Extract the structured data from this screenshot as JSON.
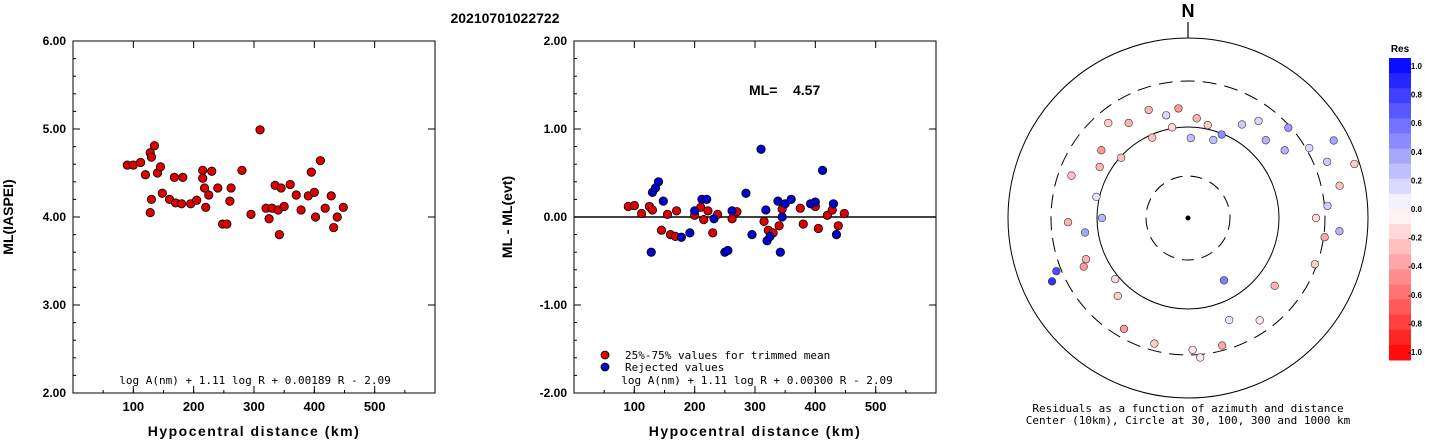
{
  "header": {
    "event_id": "20210701022722"
  },
  "chart_data": [
    {
      "type": "scatter",
      "panel": "left",
      "ylabel": "ML(IASPEI)",
      "xlabel": "Hypocentral distance (km)",
      "xlim": [
        0,
        600
      ],
      "ylim": [
        2.0,
        6.0
      ],
      "xticks": [
        "100",
        "200",
        "300",
        "400",
        "500"
      ],
      "yticks": [
        "2.00",
        "3.00",
        "4.00",
        "5.00",
        "6.00"
      ],
      "formula": "log A(nm) + 1.11 log R + 0.00189 R - 2.09",
      "color": "#dd0000",
      "points": [
        [
          90,
          4.59
        ],
        [
          100,
          4.59
        ],
        [
          112,
          4.62
        ],
        [
          120,
          4.48
        ],
        [
          128,
          4.73
        ],
        [
          130,
          4.68
        ],
        [
          135,
          4.81
        ],
        [
          140,
          4.5
        ],
        [
          145,
          4.57
        ],
        [
          128,
          4.05
        ],
        [
          130,
          4.2
        ],
        [
          148,
          4.27
        ],
        [
          160,
          4.2
        ],
        [
          168,
          4.45
        ],
        [
          170,
          4.16
        ],
        [
          180,
          4.15
        ],
        [
          182,
          4.45
        ],
        [
          195,
          4.15
        ],
        [
          205,
          4.19
        ],
        [
          215,
          4.53
        ],
        [
          215,
          4.44
        ],
        [
          218,
          4.33
        ],
        [
          220,
          4.11
        ],
        [
          225,
          4.25
        ],
        [
          230,
          4.52
        ],
        [
          240,
          4.33
        ],
        [
          248,
          3.92
        ],
        [
          255,
          3.92
        ],
        [
          260,
          4.18
        ],
        [
          262,
          4.33
        ],
        [
          280,
          4.53
        ],
        [
          295,
          4.03
        ],
        [
          310,
          4.99
        ],
        [
          320,
          4.1
        ],
        [
          325,
          3.98
        ],
        [
          330,
          4.1
        ],
        [
          335,
          4.36
        ],
        [
          340,
          4.08
        ],
        [
          342,
          3.8
        ],
        [
          345,
          4.33
        ],
        [
          350,
          4.12
        ],
        [
          360,
          4.37
        ],
        [
          370,
          4.25
        ],
        [
          378,
          4.08
        ],
        [
          390,
          4.24
        ],
        [
          395,
          4.51
        ],
        [
          400,
          4.28
        ],
        [
          402,
          4.0
        ],
        [
          410,
          4.64
        ],
        [
          418,
          4.1
        ],
        [
          428,
          4.24
        ],
        [
          432,
          3.88
        ],
        [
          438,
          4.0
        ],
        [
          448,
          4.11
        ]
      ]
    },
    {
      "type": "scatter",
      "panel": "middle",
      "ylabel": "ML - ML(evt)",
      "xlabel": "Hypocentral distance (km)",
      "xlim": [
        0,
        600
      ],
      "ylim": [
        -2.0,
        2.0
      ],
      "xticks": [
        "100",
        "200",
        "300",
        "400",
        "500"
      ],
      "yticks": [
        "-2.00",
        "-1.00",
        "0.00",
        "1.00",
        "2.00"
      ],
      "ml_label": "ML=",
      "ml_value": "4.57",
      "legend": {
        "trimmed": "25%-75% values for trimmed mean",
        "rejected": "Rejected values"
      },
      "formula": "log A(nm) + 1.11 log R + 0.00300 R - 2.09",
      "colors": {
        "trimmed": "#dd0000",
        "rejected": "#0000cc"
      },
      "trimmed": [
        [
          90,
          0.12
        ],
        [
          100,
          0.13
        ],
        [
          112,
          0.04
        ],
        [
          125,
          0.12
        ],
        [
          130,
          0.08
        ],
        [
          145,
          -0.15
        ],
        [
          155,
          0.03
        ],
        [
          160,
          -0.2
        ],
        [
          170,
          0.07
        ],
        [
          168,
          -0.22
        ],
        [
          200,
          0.02
        ],
        [
          210,
          0.11
        ],
        [
          215,
          -0.03
        ],
        [
          222,
          0.07
        ],
        [
          230,
          -0.18
        ],
        [
          238,
          0.03
        ],
        [
          262,
          -0.02
        ],
        [
          270,
          0.06
        ],
        [
          315,
          -0.05
        ],
        [
          322,
          -0.15
        ],
        [
          330,
          -0.18
        ],
        [
          340,
          -0.1
        ],
        [
          345,
          0.09
        ],
        [
          375,
          0.1
        ],
        [
          380,
          -0.08
        ],
        [
          400,
          0.12
        ],
        [
          405,
          -0.13
        ],
        [
          420,
          0.02
        ],
        [
          428,
          0.08
        ],
        [
          438,
          -0.1
        ],
        [
          448,
          0.04
        ]
      ],
      "rejected": [
        [
          128,
          -0.4
        ],
        [
          130,
          0.28
        ],
        [
          135,
          0.33
        ],
        [
          140,
          0.4
        ],
        [
          148,
          0.18
        ],
        [
          178,
          -0.23
        ],
        [
          192,
          -0.18
        ],
        [
          200,
          0.07
        ],
        [
          212,
          0.2
        ],
        [
          220,
          0.2
        ],
        [
          232,
          -0.02
        ],
        [
          250,
          -0.4
        ],
        [
          255,
          -0.38
        ],
        [
          285,
          0.27
        ],
        [
          295,
          -0.2
        ],
        [
          310,
          0.77
        ],
        [
          320,
          -0.27
        ],
        [
          325,
          -0.22
        ],
        [
          338,
          0.18
        ],
        [
          342,
          -0.4
        ],
        [
          350,
          0.15
        ],
        [
          392,
          0.15
        ],
        [
          400,
          0.17
        ],
        [
          412,
          0.53
        ],
        [
          430,
          0.15
        ],
        [
          435,
          -0.2
        ],
        [
          262,
          0.07
        ],
        [
          318,
          0.08
        ],
        [
          360,
          0.2
        ],
        [
          345,
          0.0
        ]
      ]
    },
    {
      "type": "scatter",
      "panel": "right",
      "title": "N",
      "caption_line1": "Residuals as a function of azimuth and distance",
      "caption_line2": "Center (10km), Circle at 30, 100, 300 and 1000 km",
      "colorbar_title": "Res",
      "colorbar_ticks": [
        "1.0",
        "0.8",
        "0.6",
        "0.4",
        "0.2",
        "0.0",
        "-0.2",
        "-0.4",
        "-0.6",
        "-0.8",
        "-1.0"
      ],
      "rings_km": [
        10,
        30,
        100,
        300,
        1000
      ],
      "points": [
        [
          5,
          100,
          -0.3
        ],
        [
          12,
          95,
          -0.2
        ],
        [
          18,
          82,
          0.25
        ],
        [
          22,
          90,
          0.45
        ],
        [
          30,
          108,
          0.2
        ],
        [
          36,
          120,
          0.15
        ],
        [
          45,
          110,
          0.3
        ],
        [
          48,
          135,
          0.4
        ],
        [
          55,
          118,
          0.3
        ],
        [
          60,
          140,
          0.15
        ],
        [
          62,
          165,
          0.35
        ],
        [
          68,
          150,
          0.2
        ],
        [
          72,
          175,
          -0.2
        ],
        [
          78,
          155,
          -0.25
        ],
        [
          85,
          140,
          0.2
        ],
        [
          90,
          128,
          -0.15
        ],
        [
          95,
          152,
          0.3
        ],
        [
          98,
          138,
          -0.35
        ],
        [
          110,
          135,
          -0.2
        ],
        [
          128,
          110,
          -0.3
        ],
        [
          145,
          125,
          -0.1
        ],
        [
          150,
          72,
          0.5
        ],
        [
          158,
          110,
          0.1
        ],
        [
          165,
          132,
          -0.35
        ],
        [
          175,
          140,
          -0.1
        ],
        [
          178,
          132,
          -0.1
        ],
        [
          195,
          130,
          -0.2
        ],
        [
          210,
          128,
          -0.4
        ],
        [
          222,
          105,
          -0.2
        ],
        [
          230,
          95,
          -0.15
        ],
        [
          245,
          115,
          -0.4
        ],
        [
          248,
          110,
          -0.3
        ],
        [
          245,
          150,
          0.8
        ],
        [
          248,
          142,
          0.7
        ],
        [
          262,
          104,
          0.35
        ],
        [
          270,
          86,
          0.3
        ],
        [
          268,
          120,
          -0.3
        ],
        [
          283,
          94,
          0.1
        ],
        [
          290,
          124,
          -0.25
        ],
        [
          300,
          102,
          -0.3
        ],
        [
          308,
          110,
          -0.4
        ],
        [
          312,
          90,
          -0.25
        ],
        [
          320,
          124,
          -0.2
        ],
        [
          328,
          112,
          -0.3
        ],
        [
          336,
          88,
          -0.25
        ],
        [
          340,
          115,
          -0.3
        ],
        [
          348,
          105,
          0.15
        ],
        [
          350,
          92,
          -0.15
        ],
        [
          355,
          110,
          -0.4
        ],
        [
          2,
          80,
          0.25
        ]
      ]
    }
  ]
}
